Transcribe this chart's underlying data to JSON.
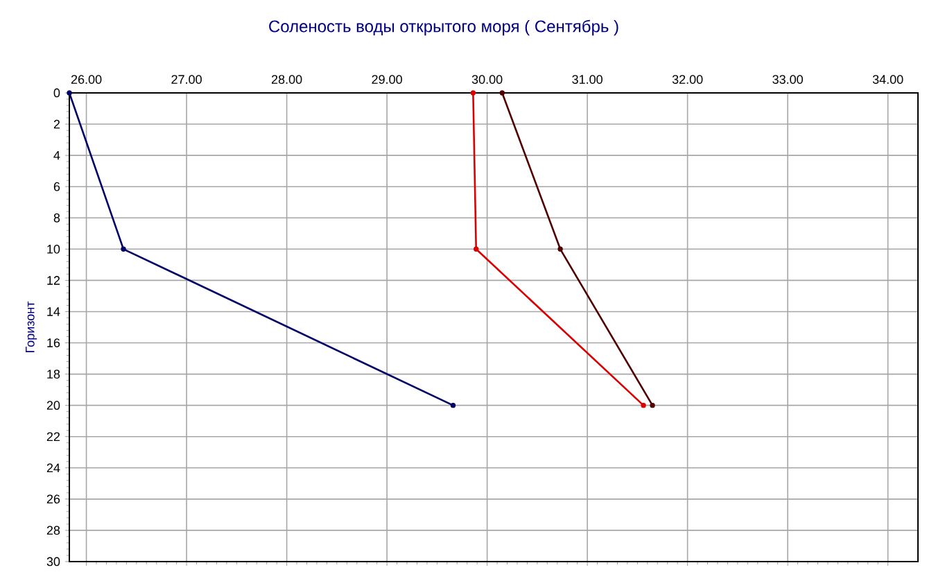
{
  "chart_data": {
    "type": "line",
    "title": "Соленость воды открытого моря    ( Сентябрь )",
    "ylabel": "Горизонт",
    "xlim": [
      25.83,
      34.3
    ],
    "ylim": [
      30,
      0
    ],
    "xticks": [
      {
        "value": 26,
        "label": "26.00"
      },
      {
        "value": 27,
        "label": "27.00"
      },
      {
        "value": 28,
        "label": "28.00"
      },
      {
        "value": 29,
        "label": "29.00"
      },
      {
        "value": 30,
        "label": "30.00"
      },
      {
        "value": 31,
        "label": "31.00"
      },
      {
        "value": 32,
        "label": "32.00"
      },
      {
        "value": 33,
        "label": "33.00"
      },
      {
        "value": 34,
        "label": "34.00"
      }
    ],
    "yticks": [
      0,
      2,
      4,
      6,
      8,
      10,
      12,
      14,
      16,
      18,
      20,
      22,
      24,
      26,
      28,
      30
    ],
    "grid": true,
    "marker": "circle",
    "line_style": "solid",
    "series": [
      {
        "color": "#000066",
        "x": [
          25.83,
          26.37,
          29.66
        ],
        "values": [
          0,
          10,
          20
        ]
      },
      {
        "color": "#dd0000",
        "x": [
          29.86,
          29.89,
          31.56
        ],
        "values": [
          0,
          10,
          20
        ]
      },
      {
        "color": "#500000",
        "x": [
          30.15,
          30.73,
          31.65
        ],
        "values": [
          0,
          10,
          20
        ]
      }
    ]
  }
}
